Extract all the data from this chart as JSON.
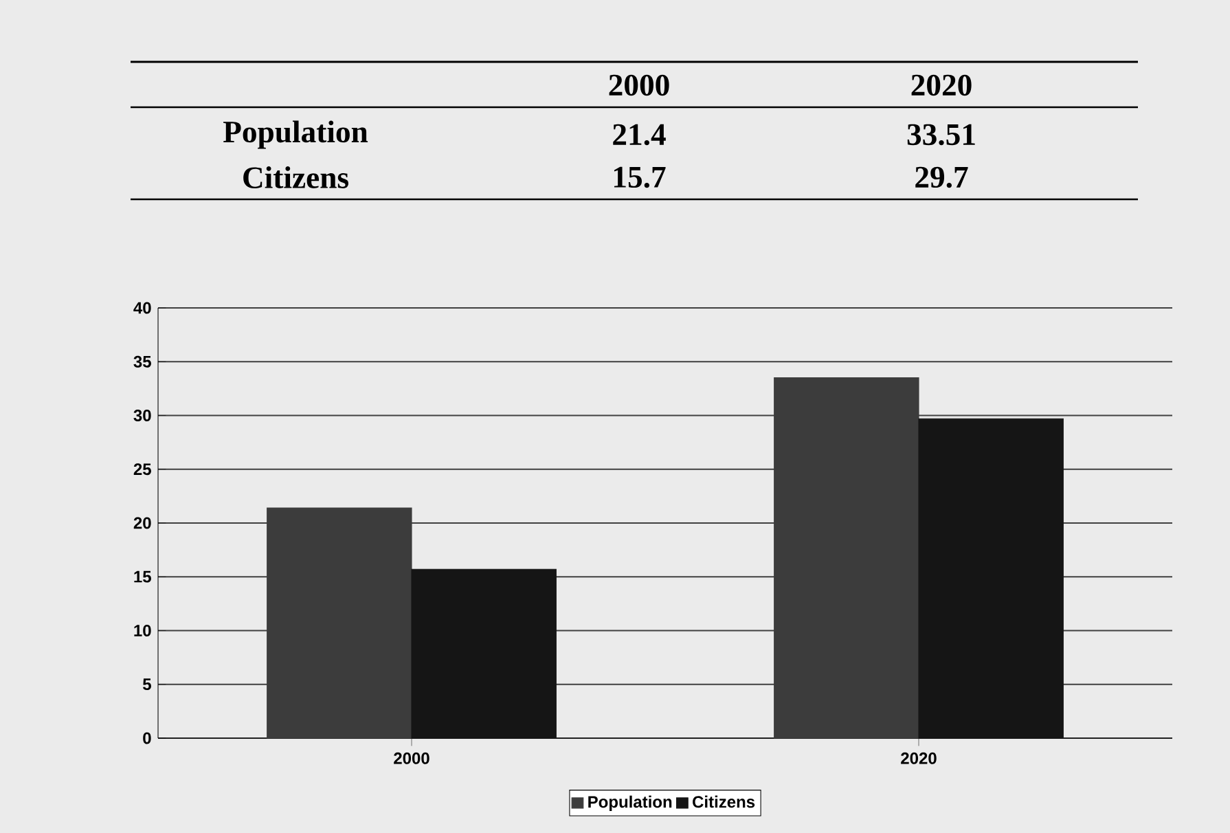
{
  "chart_data": {
    "type": "bar",
    "categories": [
      "2000",
      "2020"
    ],
    "series": [
      {
        "name": "Population",
        "color": "#3c3c3c",
        "values": [
          21.4,
          33.51
        ],
        "value_labels": [
          "21.4",
          "33.51"
        ]
      },
      {
        "name": "Citizens",
        "color": "#151515",
        "values": [
          15.7,
          29.7
        ],
        "value_labels": [
          "15.7",
          "29.7"
        ]
      }
    ],
    "ylim": [
      0,
      40
    ],
    "yticks": [
      0,
      5,
      10,
      15,
      20,
      25,
      30,
      35,
      40
    ],
    "grid": "y",
    "legend": "bottom"
  }
}
